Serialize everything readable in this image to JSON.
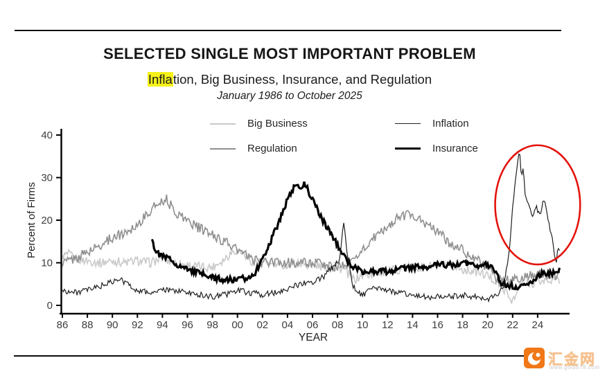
{
  "header": {
    "title": "SELECTED SINGLE MOST IMPORTANT PROBLEM",
    "subtitle_highlight": "Infla",
    "subtitle_rest": "tion, Big Business, Insurance, and Regulation",
    "date_range": "January 1986 to October 2025"
  },
  "legend": {
    "items": [
      {
        "label": "Big Business",
        "color": "#c9c9c9",
        "weight": 2
      },
      {
        "label": "Inflation",
        "color": "#1f1f1f",
        "weight": 1.4
      },
      {
        "label": "Regulation",
        "color": "#8f8f8f",
        "weight": 2
      },
      {
        "label": "Insurance",
        "color": "#000000",
        "weight": 3.6
      }
    ]
  },
  "chart_data": {
    "type": "line",
    "title": "Selected Single Most Important Problem",
    "xlabel": "YEAR",
    "ylabel": "Percent of Firms",
    "x_range": [
      1986.0,
      2025.83
    ],
    "ylim": [
      0,
      40
    ],
    "grid": false,
    "y_ticks": [
      0,
      10,
      20,
      30,
      40
    ],
    "x_tick_years": [
      1986,
      1988,
      1990,
      1992,
      1994,
      1996,
      1998,
      2000,
      2002,
      2004,
      2006,
      2008,
      2010,
      2012,
      2014,
      2016,
      2018,
      2020,
      2022,
      2024
    ],
    "x_tick_labels": [
      "86",
      "88",
      "90",
      "92",
      "94",
      "96",
      "98",
      "00",
      "02",
      "04",
      "06",
      "08",
      "10",
      "12",
      "14",
      "16",
      "18",
      "20",
      "22",
      "24"
    ],
    "series": [
      {
        "name": "Big Business",
        "color": "#c9c9c9",
        "width": 1.6,
        "noise": 1.1,
        "seed": 1,
        "anchors": [
          [
            1986.0,
            11.5
          ],
          [
            1986.5,
            12
          ],
          [
            1987,
            11
          ],
          [
            1988,
            10.5
          ],
          [
            1989,
            10
          ],
          [
            1990,
            10.5
          ],
          [
            1991,
            10
          ],
          [
            1992,
            10.5
          ],
          [
            1993,
            10
          ],
          [
            1994,
            11
          ],
          [
            1995,
            10
          ],
          [
            1996,
            9.5
          ],
          [
            1997,
            9
          ],
          [
            1998,
            9
          ],
          [
            1999,
            11
          ],
          [
            1999.7,
            13
          ],
          [
            2000.4,
            12.5
          ],
          [
            2001,
            10.5
          ],
          [
            2002,
            10
          ],
          [
            2003,
            9.5
          ],
          [
            2004,
            9.5
          ],
          [
            2005,
            10
          ],
          [
            2006,
            9.5
          ],
          [
            2007,
            9
          ],
          [
            2008.5,
            8.5
          ],
          [
            2009.3,
            6
          ],
          [
            2010,
            7
          ],
          [
            2011,
            7.5
          ],
          [
            2012,
            8
          ],
          [
            2013,
            8.5
          ],
          [
            2014,
            9
          ],
          [
            2015,
            9
          ],
          [
            2016,
            9.5
          ],
          [
            2017,
            9
          ],
          [
            2018,
            8.5
          ],
          [
            2019,
            8
          ],
          [
            2020,
            7
          ],
          [
            2020.5,
            6
          ],
          [
            2021.3,
            4
          ],
          [
            2021.8,
            1.5
          ],
          [
            2022.2,
            1.5
          ],
          [
            2022.5,
            4.5
          ],
          [
            2023,
            5
          ],
          [
            2024,
            5.5
          ],
          [
            2025,
            6
          ],
          [
            2025.83,
            6
          ]
        ]
      },
      {
        "name": "Regulation",
        "color": "#8f8f8f",
        "width": 1.6,
        "noise": 1.2,
        "seed": 2,
        "anchors": [
          [
            1986,
            10
          ],
          [
            1987,
            11
          ],
          [
            1988,
            12.5
          ],
          [
            1989,
            14
          ],
          [
            1990,
            16
          ],
          [
            1991,
            17
          ],
          [
            1992,
            19
          ],
          [
            1993,
            22
          ],
          [
            1993.8,
            24.5
          ],
          [
            1994.3,
            25
          ],
          [
            1995,
            22
          ],
          [
            1996,
            20
          ],
          [
            1997,
            18
          ],
          [
            1998,
            16.5
          ],
          [
            1999,
            15
          ],
          [
            2000,
            13
          ],
          [
            2001,
            11
          ],
          [
            2002,
            10
          ],
          [
            2003,
            10
          ],
          [
            2004,
            10
          ],
          [
            2005,
            10
          ],
          [
            2006,
            10
          ],
          [
            2007,
            9.5
          ],
          [
            2008,
            9
          ],
          [
            2009,
            10
          ],
          [
            2010,
            13
          ],
          [
            2011,
            16
          ],
          [
            2012,
            18.5
          ],
          [
            2013,
            21
          ],
          [
            2014,
            21.5
          ],
          [
            2015,
            19
          ],
          [
            2016,
            17.5
          ],
          [
            2017,
            14.5
          ],
          [
            2018,
            13
          ],
          [
            2019,
            11
          ],
          [
            2020,
            9
          ],
          [
            2020.5,
            7
          ],
          [
            2021,
            6
          ],
          [
            2022,
            6
          ],
          [
            2023,
            6.5
          ],
          [
            2024,
            7.5
          ],
          [
            2025,
            7
          ],
          [
            2025.83,
            7.5
          ]
        ]
      },
      {
        "name": "Insurance",
        "color": "#000000",
        "width": 3.2,
        "noise": 0.7,
        "seed": 4,
        "anchors": [
          [
            1993.17,
            16
          ],
          [
            1993.4,
            13
          ],
          [
            1993.7,
            12
          ],
          [
            1994,
            11.5
          ],
          [
            1994.5,
            11
          ],
          [
            1995,
            10
          ],
          [
            1995.5,
            9
          ],
          [
            1996,
            8.5
          ],
          [
            1997,
            7.5
          ],
          [
            1998,
            6.5
          ],
          [
            1999,
            6
          ],
          [
            2000,
            6
          ],
          [
            2000.8,
            6.5
          ],
          [
            2001.5,
            8
          ],
          [
            2002,
            11
          ],
          [
            2002.5,
            14
          ],
          [
            2003,
            17.5
          ],
          [
            2003.5,
            21
          ],
          [
            2004,
            25
          ],
          [
            2004.5,
            27.5
          ],
          [
            2005,
            28
          ],
          [
            2005.4,
            28.5
          ],
          [
            2005.8,
            26
          ],
          [
            2006.3,
            23
          ],
          [
            2007,
            19
          ],
          [
            2007.5,
            17
          ],
          [
            2008,
            14
          ],
          [
            2008.5,
            11.5
          ],
          [
            2009,
            9.5
          ],
          [
            2010,
            8
          ],
          [
            2011,
            8
          ],
          [
            2012,
            8
          ],
          [
            2013,
            8.5
          ],
          [
            2014,
            9
          ],
          [
            2015,
            9
          ],
          [
            2016,
            9.5
          ],
          [
            2017,
            9.5
          ],
          [
            2018,
            10
          ],
          [
            2019,
            9.5
          ],
          [
            2020,
            9.5
          ],
          [
            2020.6,
            8
          ],
          [
            2021.1,
            5
          ],
          [
            2021.5,
            5
          ],
          [
            2022,
            4.5
          ],
          [
            2022.5,
            4
          ],
          [
            2023,
            5
          ],
          [
            2023.5,
            5.5
          ],
          [
            2024,
            7
          ],
          [
            2024.5,
            7.5
          ],
          [
            2025,
            7.5
          ],
          [
            2025.83,
            8.5
          ]
        ]
      },
      {
        "name": "Inflation",
        "color": "#1f1f1f",
        "width": 1.2,
        "noise": 0.7,
        "seed": 3,
        "anchors": [
          [
            1986,
            3.5
          ],
          [
            1987,
            3
          ],
          [
            1988,
            3.5
          ],
          [
            1989,
            4.5
          ],
          [
            1990,
            5.5
          ],
          [
            1990.7,
            6
          ],
          [
            1991.5,
            4.5
          ],
          [
            1992,
            3.5
          ],
          [
            1993,
            3
          ],
          [
            1994,
            3.5
          ],
          [
            1995,
            3.5
          ],
          [
            1996,
            3
          ],
          [
            1997,
            2.5
          ],
          [
            1998,
            2
          ],
          [
            1999,
            2.5
          ],
          [
            2000,
            3.5
          ],
          [
            2001,
            3
          ],
          [
            2002,
            2.5
          ],
          [
            2003,
            3
          ],
          [
            2004,
            4
          ],
          [
            2005,
            5
          ],
          [
            2006,
            5.5
          ],
          [
            2007,
            7
          ],
          [
            2008.2,
            11
          ],
          [
            2008.5,
            20
          ],
          [
            2008.7,
            14
          ],
          [
            2009.2,
            5
          ],
          [
            2009.6,
            3
          ],
          [
            2010,
            2.5
          ],
          [
            2011,
            4
          ],
          [
            2012,
            3.5
          ],
          [
            2013,
            3
          ],
          [
            2014,
            2.5
          ],
          [
            2015,
            2
          ],
          [
            2016,
            2
          ],
          [
            2017,
            2
          ],
          [
            2018,
            2.5
          ],
          [
            2019,
            2
          ],
          [
            2020,
            1.5
          ],
          [
            2020.8,
            2.5
          ],
          [
            2021.3,
            5
          ],
          [
            2021.7,
            12
          ],
          [
            2022,
            23
          ],
          [
            2022.3,
            31
          ],
          [
            2022.55,
            37
          ],
          [
            2022.7,
            30
          ],
          [
            2022.85,
            33
          ],
          [
            2023,
            26
          ],
          [
            2023.3,
            23
          ],
          [
            2023.6,
            21
          ],
          [
            2023.9,
            23
          ],
          [
            2024.2,
            21
          ],
          [
            2024.5,
            25
          ],
          [
            2024.7,
            23
          ],
          [
            2025,
            18
          ],
          [
            2025.3,
            13
          ],
          [
            2025.5,
            10
          ],
          [
            2025.65,
            14
          ],
          [
            2025.83,
            12
          ]
        ]
      }
    ],
    "annotation_ellipse": {
      "color": "#e3120b",
      "stroke_width": 2.6,
      "center_year": 2024.0,
      "center_value": 23.6,
      "radius_years": 3.4,
      "radius_units": 14.0
    }
  },
  "watermark": {
    "brand_text": "汇金网",
    "brand_url": "www.gold678.com",
    "brand_color": "#f07818"
  }
}
